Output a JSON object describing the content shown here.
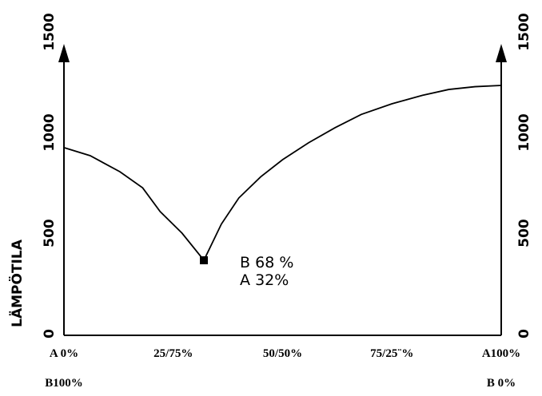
{
  "chart_data": {
    "type": "line",
    "ylabel": "LÄMPÖTILA",
    "x": [
      0,
      6,
      12.8,
      18,
      22,
      27,
      32,
      36,
      40,
      45,
      50,
      56,
      62,
      68,
      75,
      82,
      88,
      94,
      100
    ],
    "series": [
      {
        "color": "#000000",
        "values": [
          925,
          885,
          805,
          725,
          607,
          500,
          365,
          545,
          675,
          780,
          865,
          950,
          1024,
          1090,
          1143,
          1185,
          1214,
          1228,
          1234
        ]
      }
    ],
    "point": {
      "x": 32,
      "y": 365
    },
    "annotations": [
      "B 68 %",
      "A 32%"
    ],
    "xlim": [
      0,
      100
    ],
    "xticks": [
      {
        "value": 0,
        "label": "A 0%"
      },
      {
        "value": 25,
        "label": "25/75%"
      },
      {
        "value": 50,
        "label": "50/50%"
      },
      {
        "value": 75,
        "label": "75/25¨%"
      },
      {
        "value": 100,
        "label": "A100%"
      }
    ],
    "xticks_b": [
      {
        "value": 0,
        "label": "B100%"
      },
      {
        "value": 100,
        "label": "B 0%"
      }
    ],
    "ylim": [
      0,
      1500
    ],
    "yticks": [
      0,
      500,
      1000,
      1500
    ]
  }
}
